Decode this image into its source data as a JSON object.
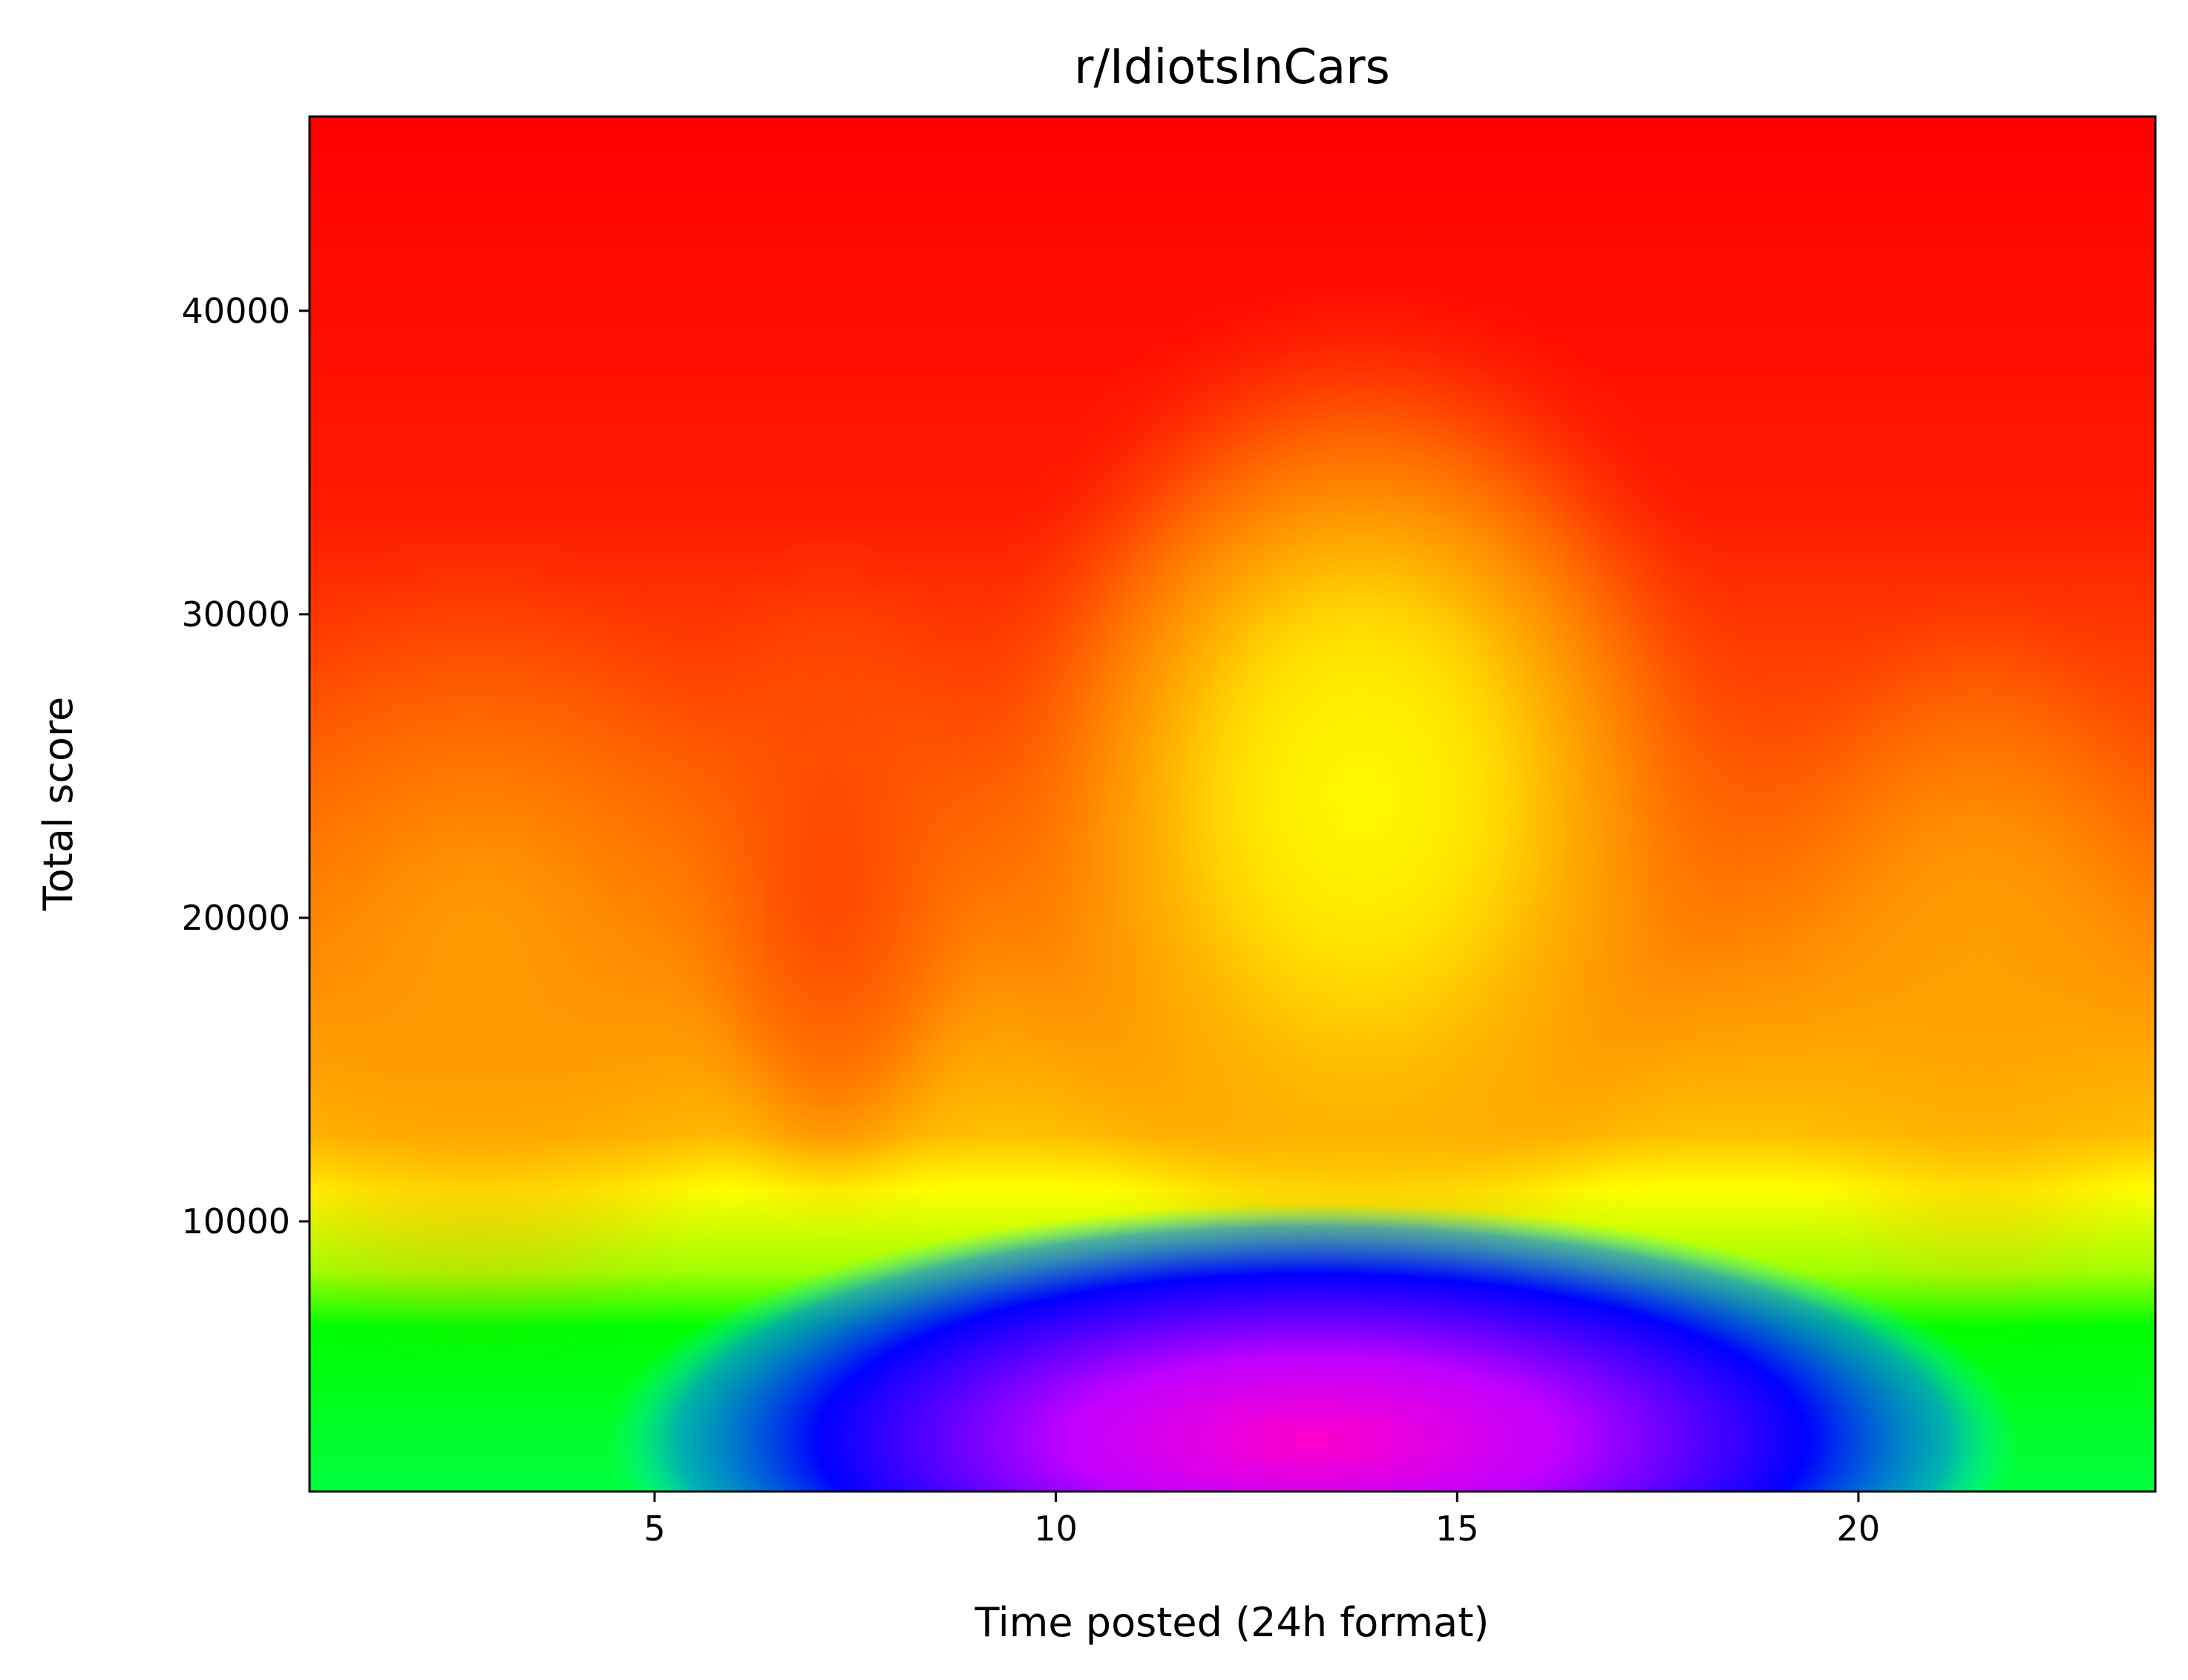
{
  "chart_data": {
    "type": "heatmap",
    "title": "r/IdiotsInCars",
    "xlabel": "Time posted (24h format)",
    "ylabel": "Total score",
    "xlim": [
      0.7,
      23.7
    ],
    "ylim": [
      1100,
      46400
    ],
    "x_ticks": [
      5,
      10,
      15,
      20
    ],
    "x_tick_labels": [
      "5",
      "10",
      "15",
      "20"
    ],
    "y_ticks": [
      10000,
      20000,
      30000,
      40000
    ],
    "y_tick_labels": [
      "10000",
      "20000",
      "30000",
      "40000"
    ],
    "colormap": "gist_rainbow_r",
    "colormap_stops": [
      "#ff0000",
      "#ff8000",
      "#ffff00",
      "#00ff00",
      "#00ffff",
      "#0000ff",
      "#ff00ff"
    ],
    "grid": false,
    "legend": "none"
  }
}
